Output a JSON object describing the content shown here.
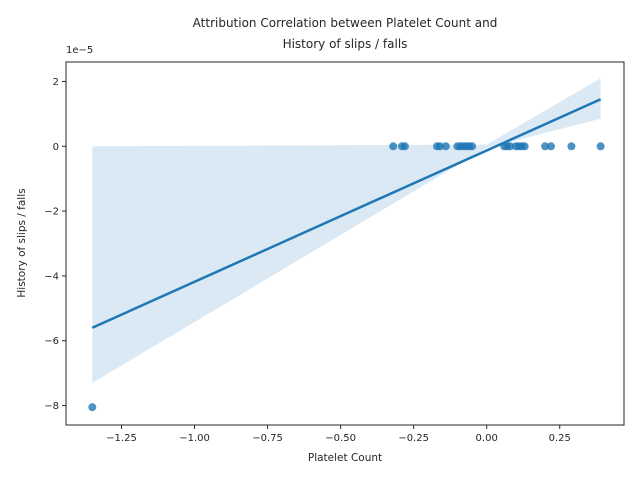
{
  "chart_data": {
    "type": "scatter",
    "title_lines": [
      "Attribution Correlation between Platelet Count and",
      "History of slips / falls"
    ],
    "xlabel": "Platelet Count",
    "ylabel": "History of slips / falls",
    "offset_text": "1e−5",
    "xlim": [
      -1.44,
      0.47
    ],
    "ylim": [
      -8.6,
      2.6
    ],
    "y_units_note": "y values in units of 1e-5",
    "xticks": [
      -1.25,
      -1.0,
      -0.75,
      -0.5,
      -0.25,
      0.0,
      0.25
    ],
    "xtick_labels": [
      "−1.25",
      "−1.00",
      "−0.75",
      "−0.50",
      "−0.25",
      "0.00",
      "0.25"
    ],
    "yticks": [
      2,
      0,
      -2,
      -4,
      -6,
      -8
    ],
    "ytick_labels": [
      "2",
      "0",
      "−2",
      "−4",
      "−6",
      "−8"
    ],
    "points": [
      {
        "x": -1.35,
        "y": -8.05
      },
      {
        "x": -0.32,
        "y": 0.0
      },
      {
        "x": -0.29,
        "y": 0.0
      },
      {
        "x": -0.28,
        "y": 0.0
      },
      {
        "x": -0.17,
        "y": 0.0
      },
      {
        "x": -0.16,
        "y": 0.0
      },
      {
        "x": -0.14,
        "y": 0.0
      },
      {
        "x": -0.1,
        "y": 0.0
      },
      {
        "x": -0.09,
        "y": 0.0
      },
      {
        "x": -0.08,
        "y": 0.0
      },
      {
        "x": -0.07,
        "y": 0.0
      },
      {
        "x": -0.06,
        "y": 0.0
      },
      {
        "x": -0.05,
        "y": 0.0
      },
      {
        "x": 0.06,
        "y": 0.0
      },
      {
        "x": 0.07,
        "y": 0.0
      },
      {
        "x": 0.08,
        "y": 0.0
      },
      {
        "x": 0.1,
        "y": 0.0
      },
      {
        "x": 0.11,
        "y": 0.0
      },
      {
        "x": 0.12,
        "y": 0.0
      },
      {
        "x": 0.13,
        "y": 0.0
      },
      {
        "x": 0.2,
        "y": 0.0
      },
      {
        "x": 0.22,
        "y": 0.0
      },
      {
        "x": 0.29,
        "y": 0.0
      },
      {
        "x": 0.39,
        "y": 0.0
      }
    ],
    "regression_line": {
      "x": [
        -1.35,
        0.39
      ],
      "y": [
        -5.6,
        1.45
      ]
    },
    "confidence_band": {
      "x": [
        -1.35,
        0.0,
        0.39
      ],
      "upper": [
        0.0,
        0.05,
        2.1
      ],
      "lower": [
        -7.3,
        -0.05,
        0.85
      ]
    },
    "colors": {
      "point": "#1f77b4",
      "line": "#1f77b4",
      "band": "#a6c8e6"
    },
    "grid": false
  }
}
